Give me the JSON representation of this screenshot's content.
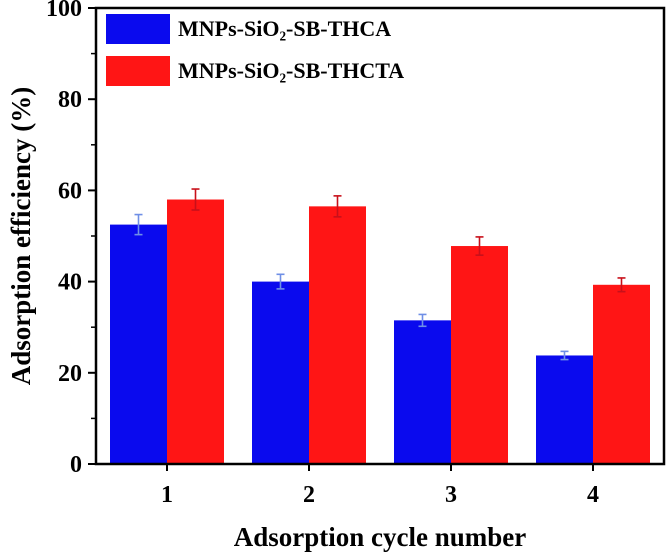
{
  "chart_data": {
    "type": "bar",
    "title": "",
    "xlabel": "Adsorption cycle number",
    "ylabel": "Adsorption efficiency (%)",
    "ylim": [
      0,
      100
    ],
    "yticks": [
      0,
      20,
      40,
      60,
      80,
      100
    ],
    "categories": [
      "1",
      "2",
      "3",
      "4"
    ],
    "series": [
      {
        "name": "MNPs-SiO₂-SB-THCA",
        "color": "#0a0aee",
        "errcolor": "#6f8fe6",
        "values": [
          52.5,
          40.0,
          31.5,
          23.8
        ],
        "errors": [
          2.2,
          1.6,
          1.3,
          0.9
        ]
      },
      {
        "name": "MNPs-SiO₂-SB-THCTA",
        "color": "#ff1515",
        "errcolor": "#c8101a",
        "values": [
          58.0,
          56.5,
          47.8,
          39.3
        ],
        "errors": [
          2.3,
          2.3,
          2.0,
          1.5
        ]
      }
    ],
    "legend": "top-left"
  }
}
